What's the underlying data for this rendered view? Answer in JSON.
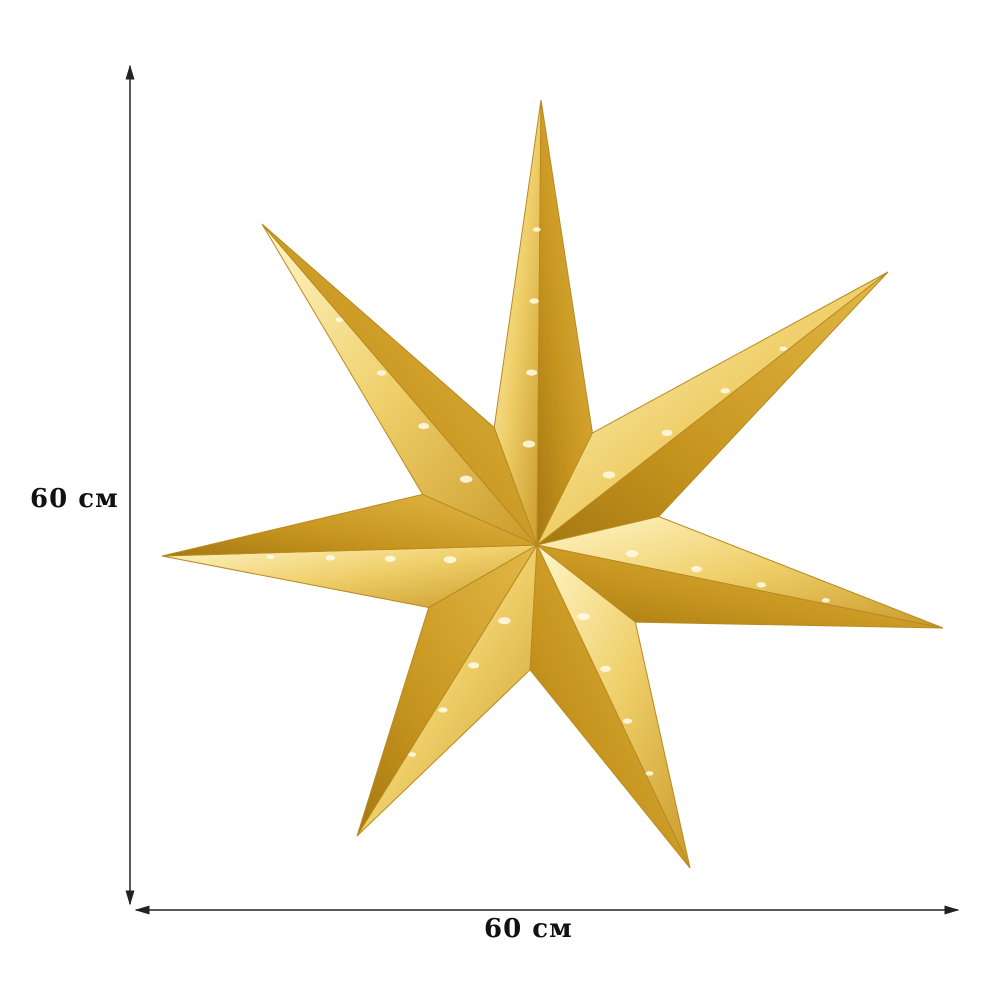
{
  "product": {
    "description_visible": "",
    "height_label": "60 см",
    "width_label": "60 см",
    "colors": {
      "gold_light": "#fdf0b0",
      "gold_mid": "#e8c25a",
      "gold_dark": "#b98a1e",
      "dimension_line": "#222222"
    }
  }
}
